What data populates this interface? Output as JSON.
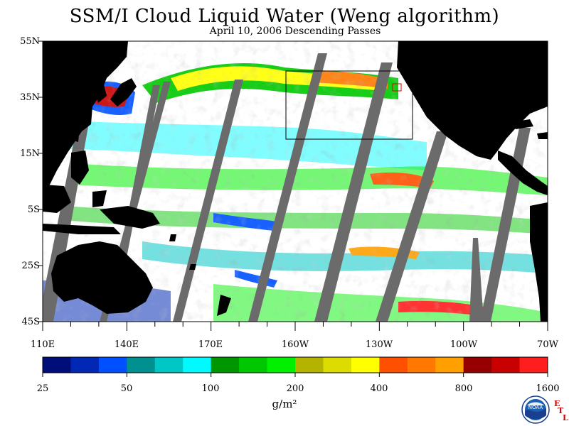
{
  "title": "SSM/I Cloud Liquid Water (Weng algorithm)",
  "subtitle": "April 10, 2006  Descending Passes",
  "lat_labels": [
    "55N",
    "35N",
    "15N",
    "5S",
    "25S",
    "45S"
  ],
  "lon_labels": [
    "110E",
    "140E",
    "170E",
    "160W",
    "130W",
    "100W",
    "70W"
  ],
  "colorbar": {
    "colors": [
      "#000e7a",
      "#0028b4",
      "#0050ff",
      "#00908f",
      "#00c6c6",
      "#00faff",
      "#009600",
      "#00c800",
      "#00f000",
      "#b4b400",
      "#dcdc00",
      "#ffff00",
      "#ff5000",
      "#ff7800",
      "#ffa000",
      "#960000",
      "#c80000",
      "#ff1e1e"
    ],
    "tick_labels": [
      "25",
      "50",
      "100",
      "200",
      "400",
      "800",
      "1600"
    ],
    "units": "g/m²"
  },
  "logo_text": "NOAA",
  "etl_letters": [
    "E",
    "T",
    "L"
  ],
  "map_colors": {
    "land": "#000000",
    "swath_gap": "#6b6b6b",
    "ocean_clear": "#ffffff",
    "box": "#000000",
    "box_accent": "#d40000"
  }
}
